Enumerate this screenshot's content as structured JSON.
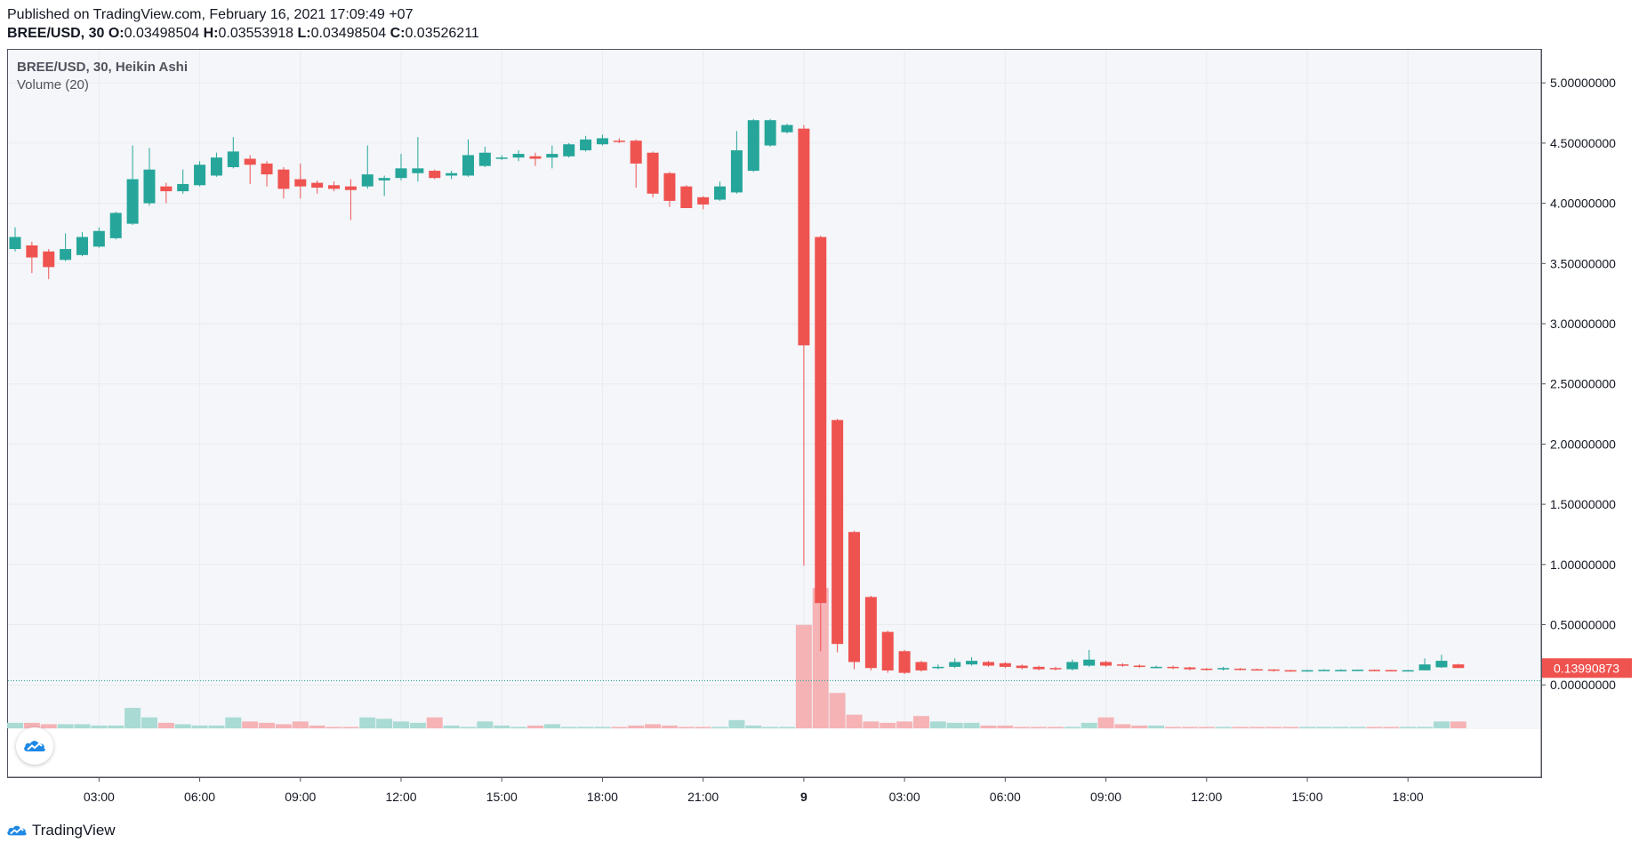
{
  "header": {
    "published": "Published on TradingView.com, February 16, 2021 17:09:49 +07",
    "symbol": "BREE/USD, 30",
    "open_label": "O:",
    "open": "0.03498504",
    "high_label": "H:",
    "high": "0.03553918",
    "low_label": "L:",
    "low": "0.03498504",
    "close_label": "C:",
    "close": "0.03526211"
  },
  "legend": {
    "title": "BREE/USD, 30, Heikin Ashi",
    "volume": "Volume (20)"
  },
  "footer": {
    "brand": "TradingView"
  },
  "colors": {
    "up": "#26a69a",
    "down": "#ef5350",
    "vol_up": "#a9dbd4",
    "vol_down": "#f5b3b6",
    "grid": "#e9ebef",
    "bg": "#f4f6f9",
    "axis_text": "#131722",
    "price_line": "#26a69a"
  },
  "chart_data": {
    "type": "candlestick",
    "style": "Heikin Ashi",
    "ylim": [
      -0.4,
      5.3
    ],
    "y_ticks": [
      "5.00000000",
      "4.50000000",
      "4.00000000",
      "3.50000000",
      "3.00000000",
      "2.50000000",
      "2.00000000",
      "1.50000000",
      "1.00000000",
      "0.50000000",
      "0.00000000"
    ],
    "y_tick_values": [
      5,
      4.5,
      4,
      3.5,
      3,
      2.5,
      2,
      1.5,
      1,
      0.5,
      0
    ],
    "x_ticks": [
      {
        "label": "03:00",
        "index": 5
      },
      {
        "label": "06:00",
        "index": 11
      },
      {
        "label": "09:00",
        "index": 17
      },
      {
        "label": "12:00",
        "index": 23
      },
      {
        "label": "15:00",
        "index": 29
      },
      {
        "label": "18:00",
        "index": 35
      },
      {
        "label": "21:00",
        "index": 41
      },
      {
        "label": "9",
        "index": 47,
        "bold": true
      },
      {
        "label": "03:00",
        "index": 53
      },
      {
        "label": "06:00",
        "index": 59
      },
      {
        "label": "09:00",
        "index": 65
      },
      {
        "label": "12:00",
        "index": 71
      },
      {
        "label": "15:00",
        "index": 77
      },
      {
        "label": "18:00",
        "index": 83
      }
    ],
    "last_price": "0.13990873",
    "last_price_value": 0.1399,
    "baseline_value": 0.035,
    "candles": [
      {
        "o": 3.62,
        "h": 3.8,
        "l": 3.6,
        "c": 3.72
      },
      {
        "o": 3.65,
        "h": 3.68,
        "l": 3.42,
        "c": 3.55
      },
      {
        "o": 3.6,
        "h": 3.62,
        "l": 3.37,
        "c": 3.47
      },
      {
        "o": 3.53,
        "h": 3.75,
        "l": 3.52,
        "c": 3.62
      },
      {
        "o": 3.57,
        "h": 3.76,
        "l": 3.56,
        "c": 3.72
      },
      {
        "o": 3.64,
        "h": 3.8,
        "l": 3.63,
        "c": 3.77
      },
      {
        "o": 3.71,
        "h": 3.93,
        "l": 3.7,
        "c": 3.92
      },
      {
        "o": 3.83,
        "h": 4.48,
        "l": 3.82,
        "c": 4.2
      },
      {
        "o": 4.0,
        "h": 4.46,
        "l": 3.98,
        "c": 4.28
      },
      {
        "o": 4.14,
        "h": 4.17,
        "l": 4.0,
        "c": 4.1
      },
      {
        "o": 4.1,
        "h": 4.28,
        "l": 4.08,
        "c": 4.16
      },
      {
        "o": 4.15,
        "h": 4.35,
        "l": 4.14,
        "c": 4.32
      },
      {
        "o": 4.23,
        "h": 4.42,
        "l": 4.22,
        "c": 4.38
      },
      {
        "o": 4.3,
        "h": 4.55,
        "l": 4.29,
        "c": 4.43
      },
      {
        "o": 4.37,
        "h": 4.4,
        "l": 4.16,
        "c": 4.32
      },
      {
        "o": 4.33,
        "h": 4.35,
        "l": 4.14,
        "c": 4.24
      },
      {
        "o": 4.28,
        "h": 4.3,
        "l": 4.04,
        "c": 4.12
      },
      {
        "o": 4.2,
        "h": 4.33,
        "l": 4.04,
        "c": 4.14
      },
      {
        "o": 4.17,
        "h": 4.19,
        "l": 4.08,
        "c": 4.13
      },
      {
        "o": 4.15,
        "h": 4.18,
        "l": 4.1,
        "c": 4.12
      },
      {
        "o": 4.14,
        "h": 4.2,
        "l": 3.86,
        "c": 4.11
      },
      {
        "o": 4.14,
        "h": 4.48,
        "l": 4.12,
        "c": 4.24
      },
      {
        "o": 4.19,
        "h": 4.23,
        "l": 4.06,
        "c": 4.21
      },
      {
        "o": 4.21,
        "h": 4.41,
        "l": 4.19,
        "c": 4.29
      },
      {
        "o": 4.25,
        "h": 4.55,
        "l": 4.18,
        "c": 4.29
      },
      {
        "o": 4.27,
        "h": 4.28,
        "l": 4.2,
        "c": 4.21
      },
      {
        "o": 4.23,
        "h": 4.27,
        "l": 4.2,
        "c": 4.25
      },
      {
        "o": 4.23,
        "h": 4.53,
        "l": 4.22,
        "c": 4.4
      },
      {
        "o": 4.31,
        "h": 4.47,
        "l": 4.3,
        "c": 4.42
      },
      {
        "o": 4.37,
        "h": 4.4,
        "l": 4.36,
        "c": 4.38
      },
      {
        "o": 4.38,
        "h": 4.44,
        "l": 4.35,
        "c": 4.41
      },
      {
        "o": 4.39,
        "h": 4.42,
        "l": 4.31,
        "c": 4.37
      },
      {
        "o": 4.38,
        "h": 4.48,
        "l": 4.29,
        "c": 4.41
      },
      {
        "o": 4.39,
        "h": 4.5,
        "l": 4.38,
        "c": 4.49
      },
      {
        "o": 4.44,
        "h": 4.56,
        "l": 4.43,
        "c": 4.53
      },
      {
        "o": 4.49,
        "h": 4.57,
        "l": 4.48,
        "c": 4.54
      },
      {
        "o": 4.52,
        "h": 4.54,
        "l": 4.5,
        "c": 4.51
      },
      {
        "o": 4.52,
        "h": 4.53,
        "l": 4.13,
        "c": 4.33
      },
      {
        "o": 4.42,
        "h": 4.43,
        "l": 4.05,
        "c": 4.08
      },
      {
        "o": 4.25,
        "h": 4.26,
        "l": 3.97,
        "c": 4.02
      },
      {
        "o": 4.14,
        "h": 4.15,
        "l": 3.96,
        "c": 3.96
      },
      {
        "o": 4.05,
        "h": 4.06,
        "l": 3.95,
        "c": 3.99
      },
      {
        "o": 4.03,
        "h": 4.18,
        "l": 4.02,
        "c": 4.14
      },
      {
        "o": 4.09,
        "h": 4.6,
        "l": 4.08,
        "c": 4.44
      },
      {
        "o": 4.27,
        "h": 4.7,
        "l": 4.26,
        "c": 4.69
      },
      {
        "o": 4.48,
        "h": 4.7,
        "l": 4.47,
        "c": 4.69
      },
      {
        "o": 4.59,
        "h": 4.66,
        "l": 4.58,
        "c": 4.65
      },
      {
        "o": 4.62,
        "h": 4.65,
        "l": 0.99,
        "c": 2.82
      },
      {
        "o": 3.72,
        "h": 3.73,
        "l": 0.28,
        "c": 0.68
      },
      {
        "o": 2.2,
        "h": 2.21,
        "l": 0.27,
        "c": 0.34
      },
      {
        "o": 1.27,
        "h": 1.28,
        "l": 0.13,
        "c": 0.19
      },
      {
        "o": 0.73,
        "h": 0.74,
        "l": 0.12,
        "c": 0.14
      },
      {
        "o": 0.44,
        "h": 0.45,
        "l": 0.1,
        "c": 0.12
      },
      {
        "o": 0.28,
        "h": 0.29,
        "l": 0.09,
        "c": 0.1
      },
      {
        "o": 0.19,
        "h": 0.2,
        "l": 0.11,
        "c": 0.12
      },
      {
        "o": 0.15,
        "h": 0.17,
        "l": 0.13,
        "c": 0.15
      },
      {
        "o": 0.15,
        "h": 0.22,
        "l": 0.14,
        "c": 0.19
      },
      {
        "o": 0.17,
        "h": 0.23,
        "l": 0.16,
        "c": 0.2
      },
      {
        "o": 0.19,
        "h": 0.2,
        "l": 0.15,
        "c": 0.16
      },
      {
        "o": 0.18,
        "h": 0.19,
        "l": 0.14,
        "c": 0.15
      },
      {
        "o": 0.16,
        "h": 0.17,
        "l": 0.13,
        "c": 0.14
      },
      {
        "o": 0.15,
        "h": 0.16,
        "l": 0.12,
        "c": 0.13
      },
      {
        "o": 0.14,
        "h": 0.15,
        "l": 0.12,
        "c": 0.13
      },
      {
        "o": 0.13,
        "h": 0.21,
        "l": 0.12,
        "c": 0.19
      },
      {
        "o": 0.16,
        "h": 0.29,
        "l": 0.15,
        "c": 0.21
      },
      {
        "o": 0.19,
        "h": 0.2,
        "l": 0.15,
        "c": 0.16
      },
      {
        "o": 0.17,
        "h": 0.18,
        "l": 0.15,
        "c": 0.16
      },
      {
        "o": 0.16,
        "h": 0.17,
        "l": 0.14,
        "c": 0.15
      },
      {
        "o": 0.15,
        "h": 0.16,
        "l": 0.14,
        "c": 0.15
      },
      {
        "o": 0.15,
        "h": 0.16,
        "l": 0.13,
        "c": 0.14
      },
      {
        "o": 0.145,
        "h": 0.15,
        "l": 0.12,
        "c": 0.13
      },
      {
        "o": 0.135,
        "h": 0.14,
        "l": 0.12,
        "c": 0.13
      },
      {
        "o": 0.13,
        "h": 0.15,
        "l": 0.12,
        "c": 0.14
      },
      {
        "o": 0.135,
        "h": 0.14,
        "l": 0.12,
        "c": 0.13
      },
      {
        "o": 0.13,
        "h": 0.135,
        "l": 0.12,
        "c": 0.125
      },
      {
        "o": 0.128,
        "h": 0.13,
        "l": 0.11,
        "c": 0.12
      },
      {
        "o": 0.122,
        "h": 0.125,
        "l": 0.11,
        "c": 0.118
      },
      {
        "o": 0.118,
        "h": 0.125,
        "l": 0.11,
        "c": 0.122
      },
      {
        "o": 0.12,
        "h": 0.13,
        "l": 0.115,
        "c": 0.125
      },
      {
        "o": 0.123,
        "h": 0.13,
        "l": 0.118,
        "c": 0.124
      },
      {
        "o": 0.124,
        "h": 0.128,
        "l": 0.12,
        "c": 0.126
      },
      {
        "o": 0.125,
        "h": 0.128,
        "l": 0.12,
        "c": 0.122
      },
      {
        "o": 0.123,
        "h": 0.125,
        "l": 0.118,
        "c": 0.12
      },
      {
        "o": 0.12,
        "h": 0.125,
        "l": 0.118,
        "c": 0.122
      },
      {
        "o": 0.121,
        "h": 0.22,
        "l": 0.12,
        "c": 0.17
      },
      {
        "o": 0.146,
        "h": 0.25,
        "l": 0.14,
        "c": 0.2
      },
      {
        "o": 0.17,
        "h": 0.175,
        "l": 0.139,
        "c": 0.14
      }
    ],
    "volume": [
      0.04,
      0.04,
      0.03,
      0.03,
      0.03,
      0.02,
      0.02,
      0.15,
      0.08,
      0.04,
      0.03,
      0.02,
      0.02,
      0.08,
      0.05,
      0.04,
      0.03,
      0.05,
      0.02,
      0.01,
      0.01,
      0.08,
      0.07,
      0.05,
      0.04,
      0.08,
      0.02,
      0.01,
      0.05,
      0.02,
      0.01,
      0.02,
      0.03,
      0.01,
      0.01,
      0.01,
      0.01,
      0.02,
      0.03,
      0.02,
      0.01,
      0.01,
      0.01,
      0.06,
      0.02,
      0.01,
      0.01,
      0.76,
      1.03,
      0.26,
      0.1,
      0.05,
      0.04,
      0.05,
      0.09,
      0.05,
      0.04,
      0.04,
      0.02,
      0.02,
      0.01,
      0.01,
      0.01,
      0.01,
      0.04,
      0.08,
      0.03,
      0.02,
      0.02,
      0.01,
      0.01,
      0.01,
      0.01,
      0.01,
      0.01,
      0.01,
      0.01,
      0.01,
      0.01,
      0.01,
      0.01,
      0.01,
      0.01,
      0.01,
      0.01,
      0.05,
      0.05
    ]
  }
}
